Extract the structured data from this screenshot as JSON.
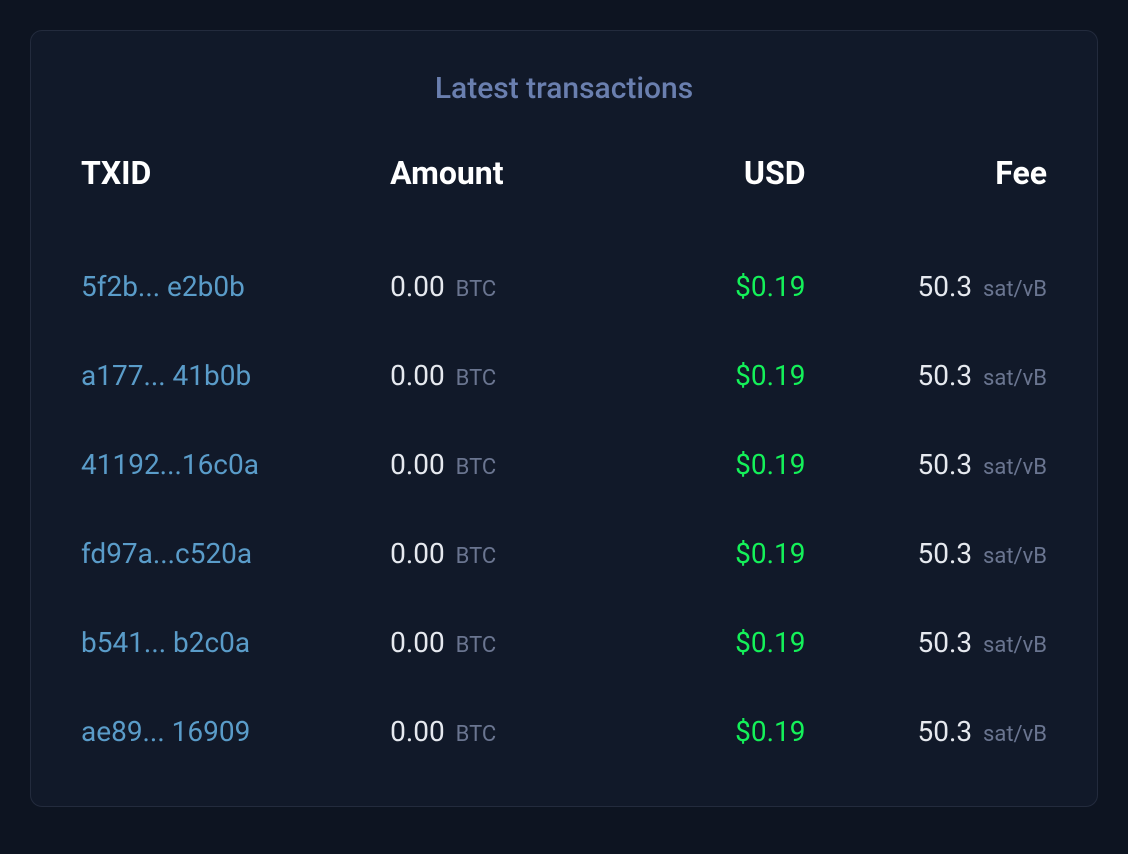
{
  "card": {
    "title": "Latest transactions",
    "columns": {
      "txid": "TXID",
      "amount": "Amount",
      "usd": "USD",
      "fee": "Fee"
    },
    "rows": [
      {
        "txid": "5f2b... e2b0b",
        "amount": "0.00",
        "amount_unit": "BTC",
        "usd": "$0.19",
        "fee": "50.3",
        "fee_unit": "sat/vB"
      },
      {
        "txid": "a177...  41b0b",
        "amount": "0.00",
        "amount_unit": "BTC",
        "usd": "$0.19",
        "fee": "50.3",
        "fee_unit": "sat/vB"
      },
      {
        "txid": "41192...16c0a",
        "amount": "0.00",
        "amount_unit": "BTC",
        "usd": "$0.19",
        "fee": "50.3",
        "fee_unit": "sat/vB"
      },
      {
        "txid": "fd97a...c520a",
        "amount": "0.00",
        "amount_unit": "BTC",
        "usd": "$0.19",
        "fee": "50.3",
        "fee_unit": "sat/vB"
      },
      {
        "txid": "b541... b2c0a",
        "amount": "0.00",
        "amount_unit": "BTC",
        "usd": "$0.19",
        "fee": "50.3",
        "fee_unit": "sat/vB"
      },
      {
        "txid": "ae89... 16909",
        "amount": "0.00",
        "amount_unit": "BTC",
        "usd": "$0.19",
        "fee": "50.3",
        "fee_unit": "sat/vB"
      }
    ]
  },
  "styling": {
    "page_background": "#0d1421",
    "card_background": "#111929",
    "card_border": "#232b3d",
    "title_color": "#6a7faf",
    "header_color": "#ffffff",
    "txid_color": "#5a9cc9",
    "amount_color": "#e6e9ef",
    "usd_color": "#14f159",
    "fee_color": "#e6e9ef",
    "unit_color": "#6a7590",
    "title_fontsize": 30,
    "header_fontsize": 32,
    "cell_fontsize": 28,
    "unit_fontsize": 22
  }
}
